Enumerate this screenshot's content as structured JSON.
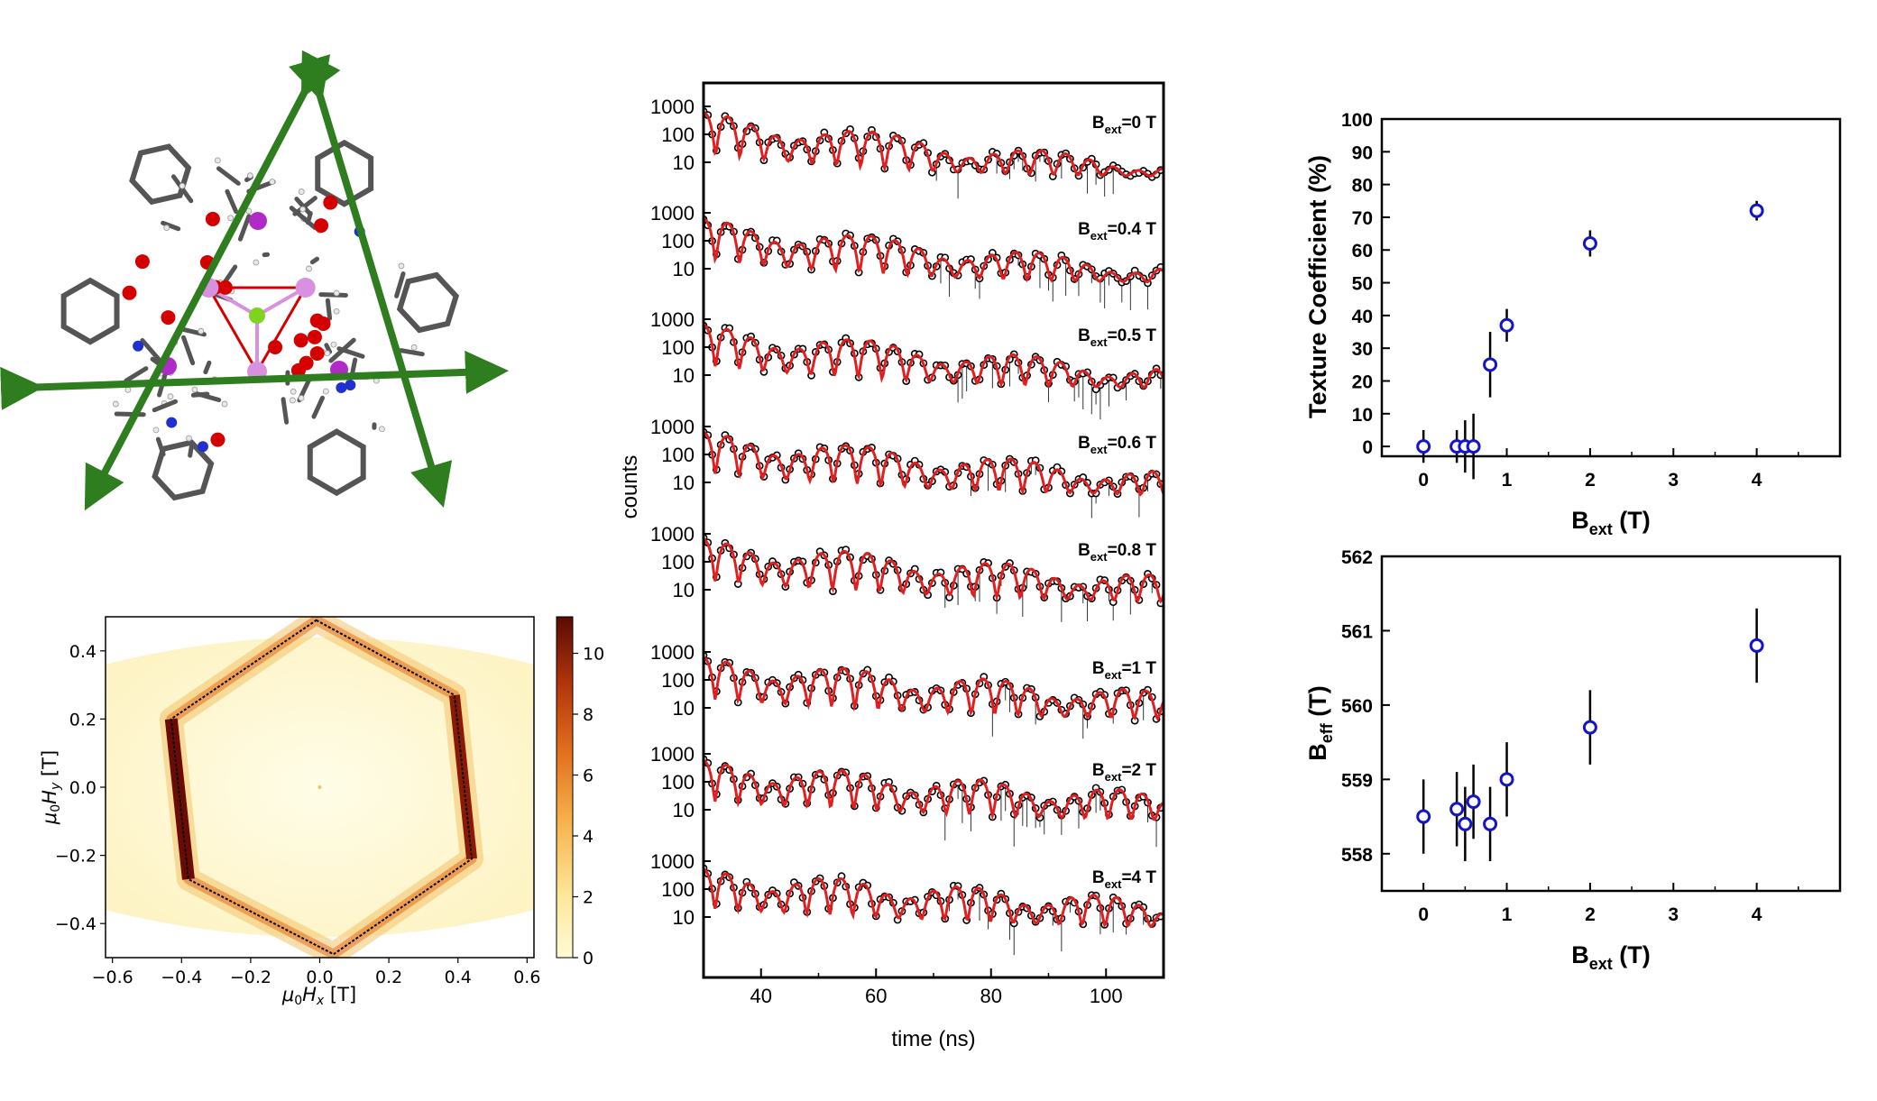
{
  "molecule_panel": {
    "atom_colors": {
      "carbon": "#555555",
      "hydrogen": "#e8e8e8",
      "oxygen": "#d40000",
      "nitrogen": "#1f2fd0",
      "dysprosium": "#b02ac8",
      "iron": "#d890e0",
      "center": "#7ed321"
    },
    "axis_color": "#2e7d1e"
  },
  "chart_data": [
    {
      "id": "heatmap",
      "type": "heatmap",
      "xlabel": "μ0Hx [T]",
      "ylabel": "μ0Hy [T]",
      "xlim": [
        -0.62,
        0.62
      ],
      "ylim": [
        -0.5,
        0.5
      ],
      "x_ticks": [
        "-0.6",
        "-0.4",
        "-0.2",
        "0.0",
        "0.2",
        "0.4",
        "0.6"
      ],
      "y_ticks": [
        "-0.4",
        "-0.2",
        "0.0",
        "0.2",
        "0.4"
      ],
      "colorbar": {
        "min": 0,
        "max": 11.2,
        "ticks": [
          "0",
          "2",
          "4",
          "6",
          "8",
          "10"
        ],
        "colors": [
          "#fffbd6",
          "#fde79b",
          "#f7b24a",
          "#e3701e",
          "#b3360b",
          "#5a0a04"
        ]
      },
      "hexagon_vertices": [
        [
          -0.01,
          0.49
        ],
        [
          0.39,
          0.27
        ],
        [
          0.44,
          -0.21
        ],
        [
          0.04,
          -0.49
        ],
        [
          -0.38,
          -0.27
        ],
        [
          -0.43,
          0.2
        ]
      ]
    },
    {
      "id": "spectra",
      "type": "line",
      "xlabel": "time (ns)",
      "ylabel": "counts",
      "xlim": [
        30,
        110
      ],
      "x_ticks": [
        "40",
        "60",
        "80",
        "100"
      ],
      "y_ticks": [
        "1000",
        "100",
        "10"
      ],
      "panels": [
        {
          "label": "ext",
          "prefix": "B",
          "suffix": "=0 T"
        },
        {
          "label": "ext",
          "prefix": "B",
          "suffix": "=0.4 T"
        },
        {
          "label": "ext",
          "prefix": "B",
          "suffix": "=0.5 T"
        },
        {
          "label": "ext",
          "prefix": "B",
          "suffix": "=0.6 T"
        },
        {
          "label": "ext",
          "prefix": "B",
          "suffix": "=0.8 T"
        },
        {
          "label": "ext",
          "prefix": "B",
          "suffix": "=1 T"
        },
        {
          "label": "ext",
          "prefix": "B",
          "suffix": "=2 T"
        },
        {
          "label": "ext",
          "prefix": "B",
          "suffix": "=4 T"
        }
      ],
      "data_color": "#000000",
      "fit_color": "#e02020"
    },
    {
      "id": "texture",
      "type": "scatter",
      "xlabel_main": "B",
      "xlabel_sub": "ext",
      "xlabel_unit": " (T)",
      "ylabel": "Texture Coefficient (%)",
      "xlim": [
        -0.5,
        5.0
      ],
      "ylim": [
        -3,
        100
      ],
      "x_ticks": [
        "0",
        "1",
        "2",
        "3",
        "4"
      ],
      "y_ticks": [
        "0",
        "10",
        "20",
        "30",
        "40",
        "50",
        "60",
        "70",
        "80",
        "90",
        "100"
      ],
      "points": [
        {
          "x": 0,
          "y": 0,
          "err": 5
        },
        {
          "x": 0.4,
          "y": 0,
          "err": 5
        },
        {
          "x": 0.5,
          "y": 0,
          "err": 8
        },
        {
          "x": 0.6,
          "y": 0,
          "err": 10
        },
        {
          "x": 0.8,
          "y": 25,
          "err": 10
        },
        {
          "x": 1,
          "y": 37,
          "err": 5
        },
        {
          "x": 2,
          "y": 62,
          "err": 4
        },
        {
          "x": 4,
          "y": 72,
          "err": 3
        }
      ],
      "marker_color": "#1515c8"
    },
    {
      "id": "beff",
      "type": "scatter",
      "xlabel_main": "B",
      "xlabel_sub": "ext",
      "xlabel_unit": " (T)",
      "ylabel_main": "B",
      "ylabel_sub": "eff",
      "ylabel_unit": " (T)",
      "xlim": [
        -0.5,
        5.0
      ],
      "ylim": [
        557.5,
        562
      ],
      "x_ticks": [
        "0",
        "1",
        "2",
        "3",
        "4"
      ],
      "y_ticks": [
        "558",
        "559",
        "560",
        "561",
        "562"
      ],
      "points": [
        {
          "x": 0,
          "y": 558.5,
          "err": 0.5
        },
        {
          "x": 0.4,
          "y": 558.6,
          "err": 0.5
        },
        {
          "x": 0.5,
          "y": 558.4,
          "err": 0.5
        },
        {
          "x": 0.6,
          "y": 558.7,
          "err": 0.5
        },
        {
          "x": 0.8,
          "y": 558.4,
          "err": 0.5
        },
        {
          "x": 1,
          "y": 559.0,
          "err": 0.5
        },
        {
          "x": 2,
          "y": 559.7,
          "err": 0.5
        },
        {
          "x": 4,
          "y": 560.8,
          "err": 0.5
        }
      ],
      "marker_color": "#1515c8"
    }
  ]
}
